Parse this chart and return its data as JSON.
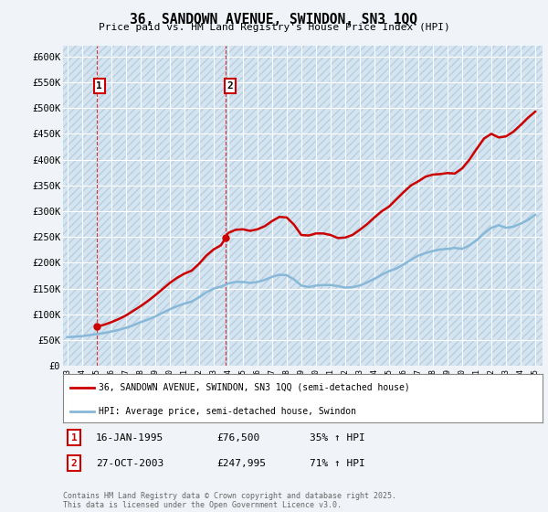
{
  "title": "36, SANDOWN AVENUE, SWINDON, SN3 1QQ",
  "subtitle": "Price paid vs. HM Land Registry's House Price Index (HPI)",
  "legend_label_1": "36, SANDOWN AVENUE, SWINDON, SN3 1QQ (semi-detached house)",
  "legend_label_2": "HPI: Average price, semi-detached house, Swindon",
  "annotation1_label": "1",
  "annotation1_date": "16-JAN-1995",
  "annotation1_price": "£76,500",
  "annotation1_hpi": "35% ↑ HPI",
  "annotation2_label": "2",
  "annotation2_date": "27-OCT-2003",
  "annotation2_price": "£247,995",
  "annotation2_hpi": "71% ↑ HPI",
  "footer": "Contains HM Land Registry data © Crown copyright and database right 2025.\nThis data is licensed under the Open Government Licence v3.0.",
  "bg_color": "#f0f4f8",
  "plot_bg_color": "#d4e4f0",
  "grid_color": "#ffffff",
  "red_color": "#cc0000",
  "blue_color": "#88b8d8",
  "ylim": [
    0,
    620000
  ],
  "yticks": [
    0,
    50000,
    100000,
    150000,
    200000,
    250000,
    300000,
    350000,
    400000,
    450000,
    500000,
    550000,
    600000
  ],
  "ytick_labels": [
    "£0",
    "£50K",
    "£100K",
    "£150K",
    "£200K",
    "£250K",
    "£300K",
    "£350K",
    "£400K",
    "£450K",
    "£500K",
    "£550K",
    "£600K"
  ],
  "xlim_start": 1992.7,
  "xlim_end": 2025.5,
  "sale1_x": 1995.04,
  "sale1_y": 76500,
  "sale2_x": 2003.82,
  "sale2_y": 247995,
  "hpi_x": [
    1993,
    1993.5,
    1994,
    1994.5,
    1995,
    1995.5,
    1996,
    1996.5,
    1997,
    1997.5,
    1998,
    1998.5,
    1999,
    1999.5,
    2000,
    2000.5,
    2001,
    2001.5,
    2002,
    2002.5,
    2003,
    2003.5,
    2004,
    2004.5,
    2005,
    2005.5,
    2006,
    2006.5,
    2007,
    2007.5,
    2008,
    2008.5,
    2009,
    2009.5,
    2010,
    2010.5,
    2011,
    2011.5,
    2012,
    2012.5,
    2013,
    2013.5,
    2014,
    2014.5,
    2015,
    2015.5,
    2016,
    2016.5,
    2017,
    2017.5,
    2018,
    2018.5,
    2019,
    2019.5,
    2020,
    2020.5,
    2021,
    2021.5,
    2022,
    2022.5,
    2023,
    2023.5,
    2024,
    2024.5,
    2025
  ],
  "hpi_y": [
    56000,
    57000,
    58000,
    60000,
    62000,
    64000,
    67000,
    70000,
    74000,
    79000,
    85000,
    90000,
    96000,
    103000,
    110000,
    116000,
    121000,
    125000,
    133000,
    143000,
    150000,
    154000,
    160000,
    163000,
    163000,
    161000,
    163000,
    167000,
    173000,
    177000,
    176000,
    168000,
    156000,
    153000,
    156000,
    157000,
    157000,
    155000,
    152000,
    153000,
    156000,
    162000,
    169000,
    177000,
    184000,
    189000,
    197000,
    206000,
    214000,
    219000,
    223000,
    226000,
    227000,
    229000,
    227000,
    234000,
    244000,
    257000,
    268000,
    273000,
    268000,
    270000,
    276000,
    283000,
    293000
  ],
  "price_x": [
    1995.04,
    1995.5,
    1996,
    1996.5,
    1997,
    1997.5,
    1998,
    1998.5,
    1999,
    1999.5,
    2000,
    2000.5,
    2001,
    2001.5,
    2002,
    2002.5,
    2003,
    2003.5,
    2003.82,
    2004,
    2004.5,
    2005,
    2005.5,
    2006,
    2006.5,
    2007,
    2007.5,
    2008,
    2008.5,
    2009,
    2009.5,
    2010,
    2010.5,
    2011,
    2011.5,
    2012,
    2012.5,
    2013,
    2013.5,
    2014,
    2014.5,
    2015,
    2015.5,
    2016,
    2016.5,
    2017,
    2017.5,
    2018,
    2018.5,
    2019,
    2019.5,
    2020,
    2020.5,
    2021,
    2021.5,
    2022,
    2022.5,
    2023,
    2023.5,
    2024,
    2024.5,
    2025
  ],
  "price_y": [
    76500,
    80000,
    85000,
    91000,
    98000,
    107000,
    116000,
    126000,
    137000,
    149000,
    161000,
    171000,
    179000,
    185000,
    198000,
    214000,
    226000,
    234000,
    247995,
    258000,
    264000,
    265000,
    262000,
    265000,
    271000,
    281000,
    289000,
    288000,
    274000,
    254000,
    253000,
    257000,
    257000,
    254000,
    248000,
    249000,
    254000,
    264000,
    275000,
    288000,
    300000,
    309000,
    323000,
    337000,
    350000,
    358000,
    367000,
    371000,
    372000,
    374000,
    373000,
    383000,
    400000,
    421000,
    441000,
    450000,
    443000,
    445000,
    454000,
    467000,
    481000,
    493000
  ]
}
